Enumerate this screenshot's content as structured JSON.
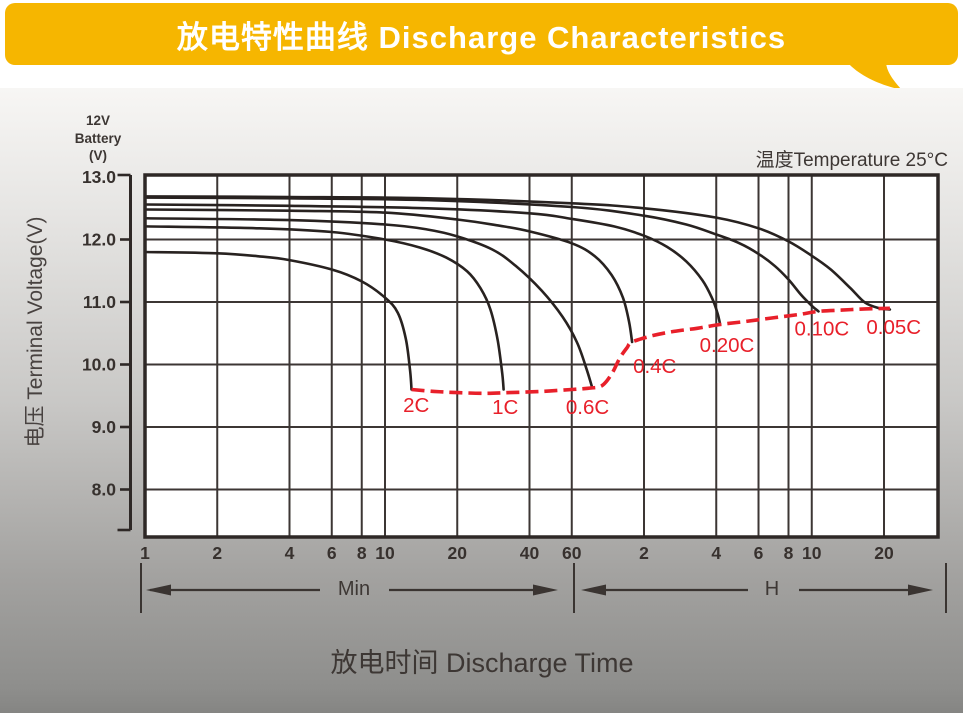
{
  "banner": {
    "title": "放电特性曲线 Discharge Characteristics",
    "color": "#f6b600"
  },
  "chart": {
    "battery_label_lines": [
      "12V",
      "Battery",
      "(V)"
    ],
    "temperature_note": "温度Temperature 25°C",
    "y_axis_title": "电压 Terminal Voltage(V)",
    "x_axis_title": "放电时间 Discharge Time",
    "minutes_section_label": "Min",
    "hours_section_label": "H"
  },
  "chart_data": {
    "type": "line",
    "title": "Discharge Characteristics (12V battery)",
    "temperature_c": 25,
    "x_scale": "log",
    "x_unit": "minutes",
    "x_range_minutes": [
      1,
      2000
    ],
    "ylabel": "Terminal Voltage (V)",
    "y_range": [
      7.2,
      13.0
    ],
    "y_ticks": [
      {
        "v": 13.0,
        "label": "13.0"
      },
      {
        "v": 12.0,
        "label": "12.0"
      },
      {
        "v": 11.0,
        "label": "11.0"
      },
      {
        "v": 10.0,
        "label": "10.0"
      },
      {
        "v": 9.0,
        "label": "9.0"
      },
      {
        "v": 8.0,
        "label": "8.0"
      }
    ],
    "x_ticks_minutes": [
      {
        "t": 1,
        "label": "1"
      },
      {
        "t": 2,
        "label": "2"
      },
      {
        "t": 4,
        "label": "4"
      },
      {
        "t": 6,
        "label": "6"
      },
      {
        "t": 8,
        "label": "8"
      },
      {
        "t": 10,
        "label": "10"
      },
      {
        "t": 20,
        "label": "20"
      },
      {
        "t": 40,
        "label": "40"
      },
      {
        "t": 60,
        "label": "60"
      }
    ],
    "x_ticks_hours": [
      {
        "t": 2,
        "label": "2"
      },
      {
        "t": 4,
        "label": "4"
      },
      {
        "t": 6,
        "label": "6"
      },
      {
        "t": 8,
        "label": "8"
      },
      {
        "t": 10,
        "label": "10"
      },
      {
        "t": 20,
        "label": "20"
      }
    ],
    "grid_minutes": [
      2,
      4,
      6,
      8,
      10,
      20,
      40,
      60,
      120,
      240,
      360,
      480,
      600,
      1200
    ],
    "grid_volts": [
      12,
      11,
      10,
      9,
      8
    ],
    "curve_color": "#282220",
    "series": [
      {
        "name": "0.05C",
        "label_at": [
          1318,
          10.6
        ],
        "points": [
          [
            1,
            12.69
          ],
          [
            4,
            12.68
          ],
          [
            15,
            12.66
          ],
          [
            60,
            12.58
          ],
          [
            120,
            12.5
          ],
          [
            240,
            12.35
          ],
          [
            360,
            12.18
          ],
          [
            480,
            11.97
          ],
          [
            600,
            11.74
          ],
          [
            720,
            11.52
          ],
          [
            870,
            11.22
          ],
          [
            1000,
            10.99
          ],
          [
            1150,
            10.9
          ],
          [
            1270,
            10.88
          ]
        ]
      },
      {
        "name": "0.10C",
        "label_at": [
          661,
          10.58
        ],
        "points": [
          [
            1,
            12.67
          ],
          [
            4,
            12.66
          ],
          [
            15,
            12.63
          ],
          [
            60,
            12.52
          ],
          [
            120,
            12.38
          ],
          [
            180,
            12.24
          ],
          [
            240,
            12.08
          ],
          [
            300,
            11.94
          ],
          [
            360,
            11.77
          ],
          [
            420,
            11.58
          ],
          [
            480,
            11.36
          ],
          [
            540,
            11.12
          ],
          [
            600,
            10.94
          ],
          [
            640,
            10.85
          ]
        ]
      },
      {
        "name": "0.20C",
        "label_at": [
          266,
          10.31
        ],
        "points": [
          [
            1,
            12.56
          ],
          [
            4,
            12.54
          ],
          [
            15,
            12.5
          ],
          [
            40,
            12.42
          ],
          [
            60,
            12.33
          ],
          [
            90,
            12.21
          ],
          [
            120,
            12.06
          ],
          [
            150,
            11.88
          ],
          [
            180,
            11.65
          ],
          [
            210,
            11.35
          ],
          [
            230,
            11.07
          ],
          [
            243,
            10.82
          ],
          [
            249,
            10.64
          ]
        ]
      },
      {
        "name": "0.4C",
        "label_at": [
          133,
          9.98
        ],
        "points": [
          [
            1,
            12.48
          ],
          [
            4,
            12.46
          ],
          [
            10,
            12.43
          ],
          [
            20,
            12.32
          ],
          [
            30,
            12.22
          ],
          [
            40,
            12.13
          ],
          [
            60,
            11.94
          ],
          [
            75,
            11.73
          ],
          [
            88,
            11.43
          ],
          [
            98,
            11.07
          ],
          [
            104,
            10.68
          ],
          [
            107,
            10.36
          ]
        ]
      },
      {
        "name": "0.6C",
        "label_at": [
          69.8,
          9.32
        ],
        "points": [
          [
            1,
            12.34
          ],
          [
            4,
            12.31
          ],
          [
            10,
            12.24
          ],
          [
            15,
            12.16
          ],
          [
            20,
            12.05
          ],
          [
            28,
            11.84
          ],
          [
            35,
            11.58
          ],
          [
            45,
            11.18
          ],
          [
            55,
            10.76
          ],
          [
            63,
            10.36
          ],
          [
            69,
            9.94
          ],
          [
            73,
            9.63
          ]
        ]
      },
      {
        "name": "1C",
        "label_at": [
          31.7,
          9.32
        ],
        "points": [
          [
            1,
            12.21
          ],
          [
            3,
            12.18
          ],
          [
            6,
            12.12
          ],
          [
            10,
            12.0
          ],
          [
            14,
            11.87
          ],
          [
            18,
            11.71
          ],
          [
            22,
            11.49
          ],
          [
            25,
            11.22
          ],
          [
            27.5,
            10.88
          ],
          [
            29.5,
            10.38
          ],
          [
            30.8,
            9.85
          ],
          [
            31.2,
            9.6
          ]
        ]
      },
      {
        "name": "2C",
        "label_at": [
          13.5,
          9.35
        ],
        "points": [
          [
            1,
            11.8
          ],
          [
            2,
            11.78
          ],
          [
            3,
            11.73
          ],
          [
            4,
            11.67
          ],
          [
            6,
            11.52
          ],
          [
            8,
            11.33
          ],
          [
            10,
            11.07
          ],
          [
            11.3,
            10.83
          ],
          [
            12.2,
            10.42
          ],
          [
            12.7,
            9.93
          ],
          [
            12.9,
            9.6
          ]
        ]
      }
    ],
    "eod_line": {
      "name": "end-of-discharge-voltage",
      "color": "#e8202a",
      "style": "dashed",
      "points": [
        [
          12.9,
          9.6
        ],
        [
          16,
          9.57
        ],
        [
          20,
          9.55
        ],
        [
          26,
          9.54
        ],
        [
          33,
          9.55
        ],
        [
          45,
          9.57
        ],
        [
          60,
          9.6
        ],
        [
          70,
          9.62
        ],
        [
          80,
          9.66
        ],
        [
          88,
          9.85
        ],
        [
          95,
          10.1
        ],
        [
          102,
          10.27
        ],
        [
          107,
          10.36
        ],
        [
          130,
          10.46
        ],
        [
          160,
          10.53
        ],
        [
          200,
          10.58
        ],
        [
          249,
          10.64
        ],
        [
          320,
          10.69
        ],
        [
          420,
          10.75
        ],
        [
          530,
          10.8
        ],
        [
          640,
          10.85
        ],
        [
          800,
          10.87
        ],
        [
          1000,
          10.89
        ],
        [
          1270,
          10.9
        ]
      ]
    }
  }
}
